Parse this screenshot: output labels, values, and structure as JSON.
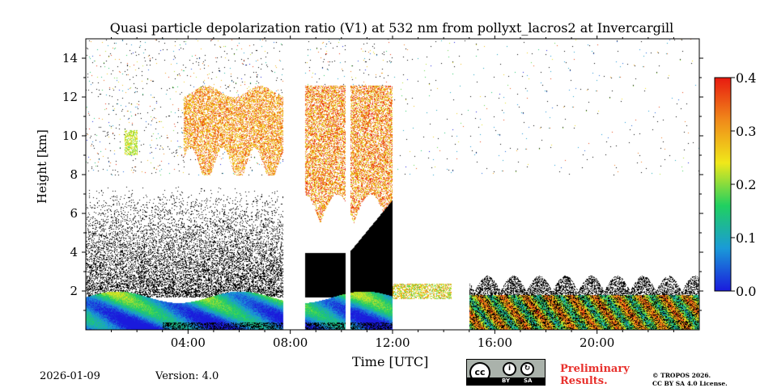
{
  "chart_data": {
    "type": "heatmap",
    "title": "Quasi particle depolarization ratio (V1) at 532 nm from pollyxt_lacros2 at Invercargill",
    "xlabel": "Time [UTC]",
    "ylabel": "Height [km]",
    "xlim_hours": [
      0,
      24
    ],
    "ylim_km": [
      0,
      15
    ],
    "x_ticks": [
      {
        "value": 4,
        "label": "04:00"
      },
      {
        "value": 8,
        "label": "08:00"
      },
      {
        "value": 12,
        "label": "12:00"
      },
      {
        "value": 16,
        "label": "16:00"
      },
      {
        "value": 20,
        "label": "20:00"
      }
    ],
    "y_ticks": [
      {
        "value": 2,
        "label": "2"
      },
      {
        "value": 4,
        "label": "4"
      },
      {
        "value": 6,
        "label": "6"
      },
      {
        "value": 8,
        "label": "8"
      },
      {
        "value": 10,
        "label": "10"
      },
      {
        "value": 12,
        "label": "12"
      },
      {
        "value": 14,
        "label": "14"
      }
    ],
    "colorbar": {
      "min": 0.0,
      "max": 0.4,
      "ticks": [
        {
          "value": 0.0,
          "label": "0.0"
        },
        {
          "value": 0.1,
          "label": "0.1"
        },
        {
          "value": 0.2,
          "label": "0.2"
        },
        {
          "value": 0.3,
          "label": "0.3"
        },
        {
          "value": 0.4,
          "label": "0.4"
        }
      ],
      "colors": [
        "#1a1adc",
        "#1a9ad8",
        "#20d060",
        "#f0e81a",
        "#f08a1a",
        "#e81a10"
      ]
    },
    "data_gaps_hours": [
      [
        7.7,
        8.55
      ],
      [
        10.15,
        10.35
      ]
    ],
    "features": [
      {
        "name": "boundary layer",
        "t_start": 0,
        "t_end": 12,
        "h_bottom_km": 0.0,
        "h_top_km": 1.8,
        "value": 0.08
      },
      {
        "name": "noise region",
        "t_start": 0,
        "t_end": 7.7,
        "h_bottom_km": 1.8,
        "h_top_km": 3.5,
        "value": 0.0
      },
      {
        "name": "cirrus early",
        "t_start": 1.5,
        "t_end": 2.0,
        "h_bottom_km": 9.0,
        "h_top_km": 10.3,
        "value": 0.25
      },
      {
        "name": "cirrus morning",
        "t_start": 3.8,
        "t_end": 7.7,
        "h_bottom_km": 8.5,
        "h_top_km": 12.5,
        "value": 0.33
      },
      {
        "name": "cirrus late morning",
        "t_start": 8.55,
        "t_end": 12.0,
        "h_bottom_km": 5.5,
        "h_top_km": 13.0,
        "value": 0.32
      },
      {
        "name": "low cloud afternoon",
        "t_start": 12.0,
        "t_end": 14.3,
        "h_bottom_km": 1.7,
        "h_top_km": 2.4,
        "value": 0.28
      },
      {
        "name": "boundary layer evening",
        "t_start": 15.0,
        "t_end": 24.0,
        "h_bottom_km": 0.0,
        "h_top_km": 2.5,
        "value": 0.2
      }
    ]
  },
  "footer": {
    "date": "2026-01-09",
    "version": "Version: 4.0",
    "preliminary_line1": "Preliminary",
    "preliminary_line2": "Results.",
    "copyright_line1": "© TROPOS 2026.",
    "copyright_line2": "CC BY SA 4.0 License.",
    "license_by": "BY",
    "license_sa": "SA",
    "license_logo": "cc"
  }
}
